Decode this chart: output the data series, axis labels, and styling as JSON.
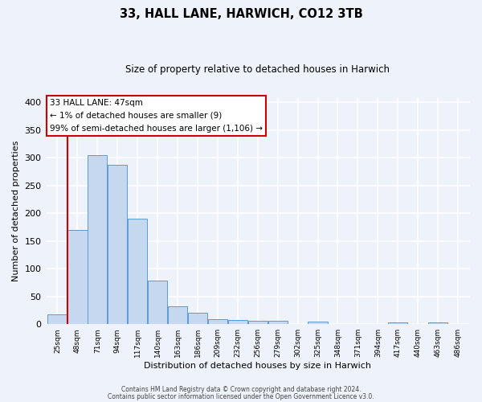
{
  "title": "33, HALL LANE, HARWICH, CO12 3TB",
  "subtitle": "Size of property relative to detached houses in Harwich",
  "xlabel": "Distribution of detached houses by size in Harwich",
  "ylabel": "Number of detached properties",
  "bar_color": "#c5d8f0",
  "bar_edge_color": "#5b9bd5",
  "background_color": "#eef2fa",
  "grid_color": "#ffffff",
  "annotation_box_color": "#ffffff",
  "annotation_box_edge": "#cc0000",
  "red_line_color": "#cc0000",
  "categories": [
    "25sqm",
    "48sqm",
    "71sqm",
    "94sqm",
    "117sqm",
    "140sqm",
    "163sqm",
    "186sqm",
    "209sqm",
    "232sqm",
    "256sqm",
    "279sqm",
    "302sqm",
    "325sqm",
    "348sqm",
    "371sqm",
    "394sqm",
    "417sqm",
    "440sqm",
    "463sqm",
    "486sqm"
  ],
  "values": [
    17,
    170,
    305,
    287,
    190,
    78,
    32,
    21,
    9,
    8,
    6,
    6,
    0,
    5,
    0,
    0,
    0,
    3,
    0,
    3,
    0
  ],
  "ylim": [
    0,
    410
  ],
  "yticks": [
    0,
    50,
    100,
    150,
    200,
    250,
    300,
    350,
    400
  ],
  "red_line_x": 0.5,
  "ann_line1": "33 HALL LANE: 47sqm",
  "ann_line2": "← 1% of detached houses are smaller (9)",
  "ann_line3": "99% of semi-detached houses are larger (1,106) →",
  "footer_line1": "Contains HM Land Registry data © Crown copyright and database right 2024.",
  "footer_line2": "Contains public sector information licensed under the Open Government Licence v3.0."
}
